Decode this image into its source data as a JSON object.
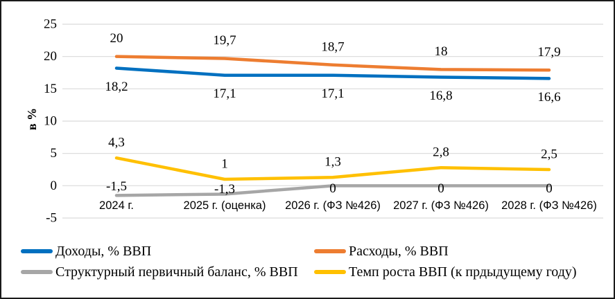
{
  "chart_data": {
    "type": "line",
    "title": "",
    "ylabel": "в %",
    "xlabel": "",
    "categories": [
      "2024 г.",
      "2025 г. (оценка)",
      "2026 г. (ФЗ №426)",
      "2027 г. (ФЗ №426)",
      "2028 г. (ФЗ №426)"
    ],
    "ylim": [
      -5,
      25
    ],
    "yticks": [
      25,
      20,
      15,
      10,
      5,
      0,
      -5
    ],
    "grid": true,
    "gridline_color": "#D9D9D9",
    "legend_position": "bottom",
    "decimal_separator": ",",
    "series": [
      {
        "name": "Доходы, % ВВП",
        "color": "#0070C0",
        "values": [
          18.2,
          17.1,
          17.1,
          16.8,
          16.6
        ],
        "labels": [
          "18,2",
          "17,1",
          "17,1",
          "16,8",
          "16,6"
        ],
        "label_placement": "below"
      },
      {
        "name": "Расходы, % ВВП",
        "color": "#ED7D31",
        "values": [
          20,
          19.7,
          18.7,
          18,
          17.9
        ],
        "labels": [
          "20",
          "19,7",
          "18,7",
          "18",
          "17,9"
        ],
        "label_placement": "above"
      },
      {
        "name": "Структурный первичный баланс, % ВВП",
        "color": "#A6A6A6",
        "values": [
          -1.5,
          -1.3,
          0,
          0,
          0
        ],
        "labels": [
          "-1,5",
          "-1,3",
          "0",
          "0",
          "0"
        ],
        "label_placement": "above"
      },
      {
        "name": "Темп роста ВВП (к прдыдущему году)",
        "color": "#FFC000",
        "values": [
          4.3,
          1,
          1.3,
          2.8,
          2.5
        ],
        "labels": [
          "4,3",
          "1",
          "1,3",
          "2,8",
          "2,5"
        ],
        "label_placement": "above"
      }
    ]
  }
}
